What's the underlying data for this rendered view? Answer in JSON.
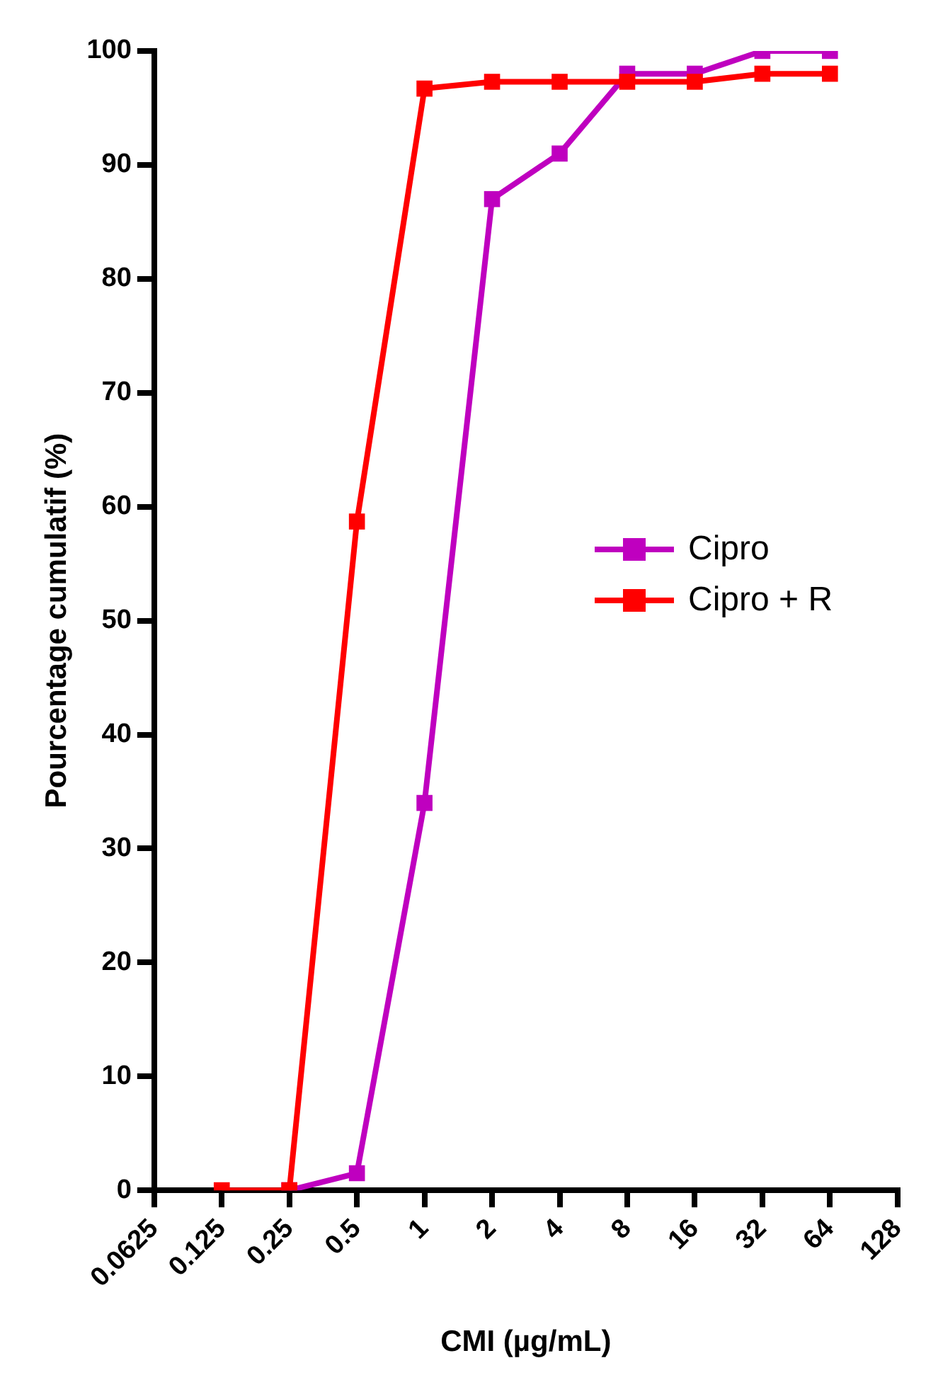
{
  "chart_data": {
    "type": "line",
    "xlabel": "CMI (µg/mL)",
    "ylabel": "Pourcentage cumulatif (%)",
    "log": "x",
    "xlim": [
      0.0625,
      128
    ],
    "xticks": [
      0.0625,
      0.125,
      0.25,
      0.5,
      1,
      2,
      4,
      8,
      16,
      32,
      64,
      128
    ],
    "ylim": [
      0,
      100
    ],
    "yticks": [
      0,
      10,
      20,
      30,
      40,
      50,
      60,
      70,
      80,
      90,
      100
    ],
    "grid": false,
    "legend": "right",
    "marker": "square",
    "line_style": "solid",
    "series": [
      {
        "name": "Cipro",
        "color": "#bf00bf",
        "x": [
          0.25,
          0.5,
          1,
          2,
          4,
          8,
          16,
          32,
          64
        ],
        "values": [
          0,
          1.5,
          34,
          87,
          91,
          98,
          98,
          100,
          100
        ]
      },
      {
        "name": "Cipro + R",
        "color": "#ff0000",
        "x": [
          0.125,
          0.25,
          0.5,
          1,
          2,
          4,
          8,
          16,
          32,
          64
        ],
        "values": [
          0,
          0,
          58.7,
          96.7,
          97.3,
          97.3,
          97.3,
          97.3,
          98,
          98
        ]
      }
    ]
  }
}
